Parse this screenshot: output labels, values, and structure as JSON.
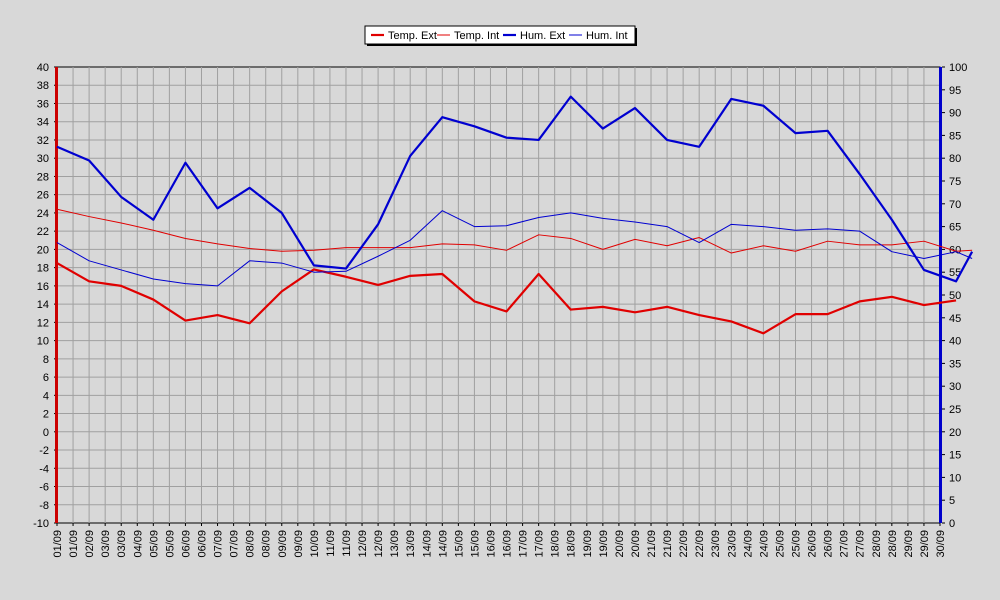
{
  "chart_data": {
    "type": "line",
    "title": "",
    "xlabel": "",
    "ylabel": "",
    "legend_position": "top-center",
    "grid": true,
    "colors": {
      "background": "#d8d8d8",
      "plot_background": "#d8d8d8",
      "grid": "#a0a0a0",
      "temp_ext": "#e00000",
      "temp_int": "#e00000",
      "hum_ext": "#0000d0",
      "hum_int": "#0000d0",
      "left_axis": "#cc0000",
      "right_axis": "#0000cc"
    },
    "y_left": {
      "min": -10,
      "max": 40,
      "step": 2
    },
    "y_right": {
      "min": 0,
      "max": 100,
      "step": 5
    },
    "categories": [
      "01/09",
      "01/09",
      "02/09",
      "03/09",
      "03/09",
      "04/09",
      "05/09",
      "05/09",
      "06/09",
      "06/09",
      "07/09",
      "07/09",
      "08/09",
      "08/09",
      "09/09",
      "09/09",
      "10/09",
      "11/09",
      "11/09",
      "12/09",
      "12/09",
      "13/09",
      "13/09",
      "14/09",
      "14/09",
      "15/09",
      "15/09",
      "16/09",
      "16/09",
      "17/09",
      "17/09",
      "18/09",
      "18/09",
      "19/09",
      "19/09",
      "20/09",
      "20/09",
      "21/09",
      "21/09",
      "22/09",
      "22/09",
      "23/09",
      "23/09",
      "24/09",
      "24/09",
      "25/09",
      "25/09",
      "26/09",
      "26/09",
      "27/09",
      "27/09",
      "28/09",
      "28/09",
      "29/09",
      "29/09",
      "30/09"
    ],
    "series": [
      {
        "name": "Temp. Ext",
        "axis": "left",
        "line_width": 2.2,
        "x": [
          0,
          2,
          4,
          6,
          8,
          10,
          12,
          14,
          16,
          18,
          20,
          22,
          24,
          26,
          28,
          30,
          32,
          34,
          36,
          38,
          40,
          42,
          44,
          46,
          48,
          50,
          52,
          54,
          56
        ],
        "values": [
          18.5,
          16.5,
          16.0,
          14.5,
          12.2,
          12.8,
          11.9,
          15.4,
          17.8,
          17.0,
          16.1,
          17.1,
          17.3,
          14.3,
          13.2,
          17.3,
          13.4,
          13.7,
          13.1,
          13.7,
          12.8,
          12.1,
          10.8,
          12.9,
          12.9,
          14.3,
          14.8,
          13.9,
          14.4
        ]
      },
      {
        "name": "Temp. Int",
        "axis": "left",
        "line_width": 1,
        "x": [
          0,
          2,
          4,
          6,
          8,
          10,
          12,
          14,
          16,
          18,
          20,
          22,
          24,
          26,
          28,
          30,
          32,
          34,
          36,
          38,
          40,
          42,
          44,
          46,
          48,
          50,
          52,
          54,
          56,
          57
        ],
        "values": [
          24.4,
          23.6,
          22.9,
          22.1,
          21.2,
          20.6,
          20.1,
          19.8,
          19.9,
          20.2,
          20.2,
          20.2,
          20.6,
          20.5,
          19.9,
          21.6,
          21.2,
          20.0,
          21.1,
          20.4,
          21.3,
          19.6,
          20.4,
          19.8,
          20.9,
          20.5,
          20.5,
          20.9,
          19.8,
          19.9
        ]
      },
      {
        "name": "Hum. Ext",
        "axis": "right",
        "line_width": 2.2,
        "x": [
          0,
          2,
          4,
          6,
          8,
          10,
          12,
          14,
          16,
          18,
          20,
          22,
          24,
          26,
          28,
          30,
          32,
          34,
          36,
          38,
          40,
          42,
          44,
          46,
          48,
          50,
          52,
          54,
          56,
          57
        ],
        "values": [
          82.5,
          79.5,
          71.5,
          66.5,
          79.0,
          69.0,
          73.5,
          68.0,
          56.5,
          55.8,
          65.5,
          80.5,
          89.0,
          87.0,
          84.5,
          84.0,
          93.5,
          86.5,
          91.0,
          84.0,
          82.5,
          93.0,
          91.5,
          85.5,
          86.0,
          76.5,
          66.5,
          55.5,
          53.0,
          59.5
        ]
      },
      {
        "name": "Hum. Int",
        "axis": "right",
        "line_width": 1,
        "x": [
          0,
          2,
          4,
          6,
          8,
          10,
          12,
          14,
          16,
          18,
          20,
          22,
          24,
          26,
          28,
          30,
          32,
          34,
          36,
          38,
          40,
          42,
          44,
          46,
          48,
          50,
          52,
          54,
          56,
          57
        ],
        "values": [
          61.5,
          57.5,
          55.5,
          53.5,
          52.5,
          52.0,
          57.5,
          57.0,
          55.0,
          55.2,
          58.5,
          62.0,
          68.5,
          65.0,
          65.2,
          67.0,
          68.0,
          66.8,
          66.0,
          65.0,
          61.5,
          65.5,
          65.0,
          64.2,
          64.5,
          64.0,
          59.5,
          58.0,
          59.5,
          58.0
        ]
      }
    ]
  }
}
